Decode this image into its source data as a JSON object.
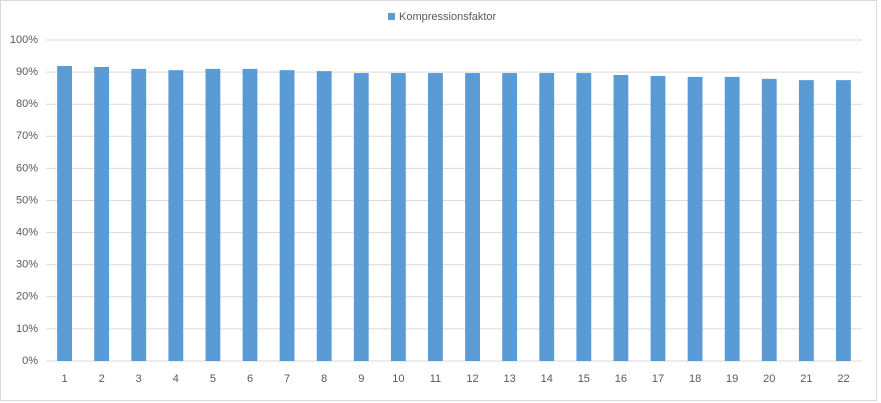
{
  "chart_data": {
    "type": "bar",
    "legend_position": "top",
    "series": [
      {
        "name": "Kompressionsfaktor",
        "color": "#5b9bd5",
        "values": [
          91.9,
          91.6,
          91.0,
          90.6,
          91.0,
          91.0,
          90.6,
          90.3,
          89.7,
          89.7,
          89.7,
          89.7,
          89.7,
          89.7,
          89.7,
          89.1,
          88.8,
          88.5,
          88.5,
          87.9,
          87.5,
          87.5
        ]
      }
    ],
    "categories": [
      "1",
      "2",
      "3",
      "4",
      "5",
      "6",
      "7",
      "8",
      "9",
      "10",
      "11",
      "12",
      "13",
      "14",
      "15",
      "16",
      "17",
      "18",
      "19",
      "20",
      "21",
      "22"
    ],
    "ylim": [
      0,
      100
    ],
    "yticks": [
      {
        "value": 0,
        "label": "0%"
      },
      {
        "value": 10,
        "label": "10%"
      },
      {
        "value": 20,
        "label": "20%"
      },
      {
        "value": 30,
        "label": "30%"
      },
      {
        "value": 40,
        "label": "40%"
      },
      {
        "value": 50,
        "label": "50%"
      },
      {
        "value": 60,
        "label": "60%"
      },
      {
        "value": 70,
        "label": "70%"
      },
      {
        "value": 80,
        "label": "80%"
      },
      {
        "value": 90,
        "label": "90%"
      },
      {
        "value": 100,
        "label": "100%"
      }
    ],
    "grid": true
  }
}
